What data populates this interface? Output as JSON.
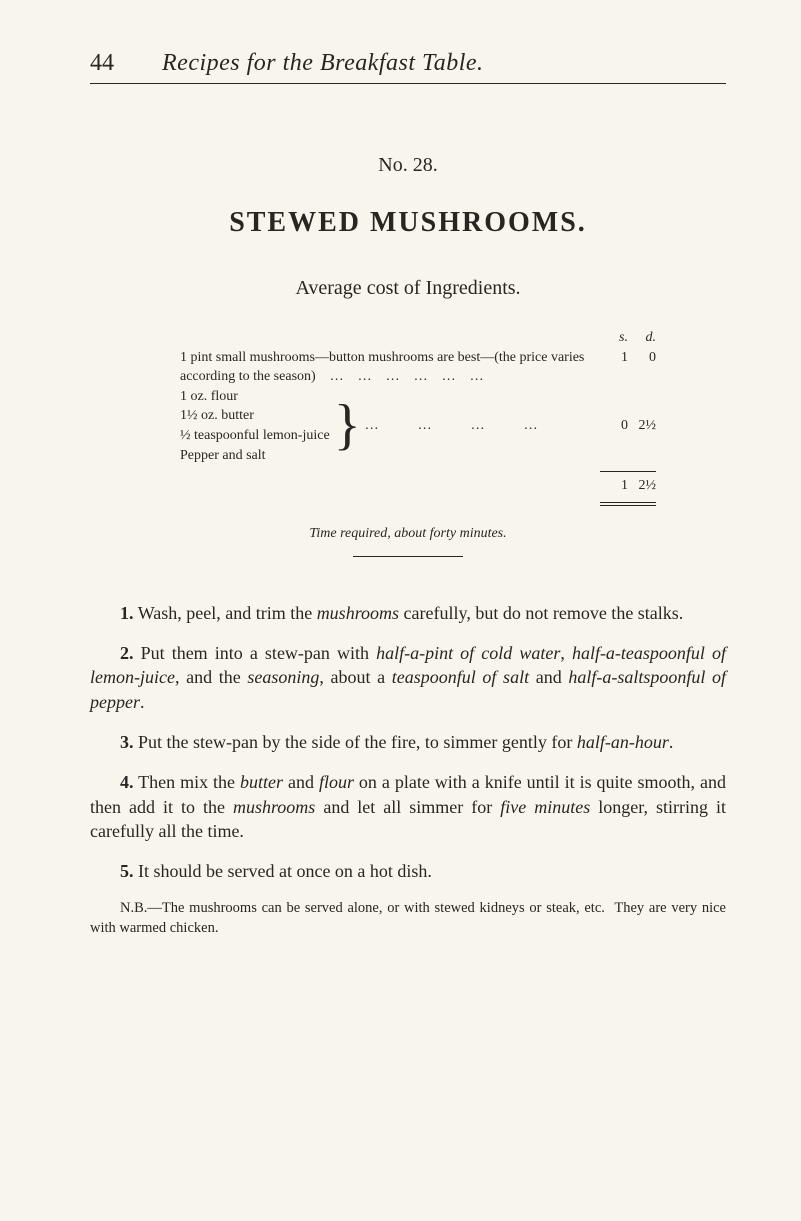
{
  "page_number": "44",
  "running_title": "Recipes for the Breakfast Table.",
  "recipe_no": "No. 28.",
  "recipe_title": "STEWED MUSHROOMS.",
  "avg_cost_label": "Average cost of Ingredients.",
  "sd_header": {
    "s": "s.",
    "d": "d."
  },
  "ingredients": {
    "row1": {
      "text": "1 pint small mushrooms—button mushrooms are best—(the price varies according to the season)    …    …    …    …    …    …",
      "s": "1",
      "d": "0"
    },
    "group": {
      "items": [
        "1 oz. flour",
        "1½ oz. butter",
        "½ teaspoonful lemon-juice",
        "Pepper and salt"
      ],
      "dots": "…    …    …    …",
      "s": "0",
      "d": "2½"
    },
    "total": {
      "s": "1",
      "d": "2½"
    }
  },
  "time_required": "Time required, about forty minutes.",
  "paragraphs": {
    "p1": {
      "num": "1.",
      "html": "Wash, peel, and trim the <span class=\"em\">mushrooms</span> carefully, but do not remove the stalks."
    },
    "p2": {
      "num": "2.",
      "html": "Put them into a stew-pan with <span class=\"em\">half-a-pint of cold water</span>, <span class=\"em\">half-a-teaspoonful of lemon-juice</span>, and the <span class=\"em\">seasoning</span>, about a <span class=\"em\">teaspoonful of salt</span> and <span class=\"em\">half-a-saltspoonful of pepper</span>."
    },
    "p3": {
      "num": "3.",
      "html": "Put the stew-pan by the side of the fire, to simmer gently for <span class=\"em\">half-an-hour</span>."
    },
    "p4": {
      "num": "4.",
      "html": "Then mix the <span class=\"em\">butter</span> and <span class=\"em\">flour</span> on a plate with a knife until it is quite smooth, and then add it to the <span class=\"em\">mushrooms</span> and let all simmer for <span class=\"em\">five minutes</span> longer, stirring it carefully all the time."
    },
    "p5": {
      "num": "5.",
      "html": "It should be served at once on a hot dish."
    }
  },
  "nb": "N.B.—The mushrooms can be served alone, or with stewed kidneys or steak, etc.  They are very nice with warmed chicken."
}
